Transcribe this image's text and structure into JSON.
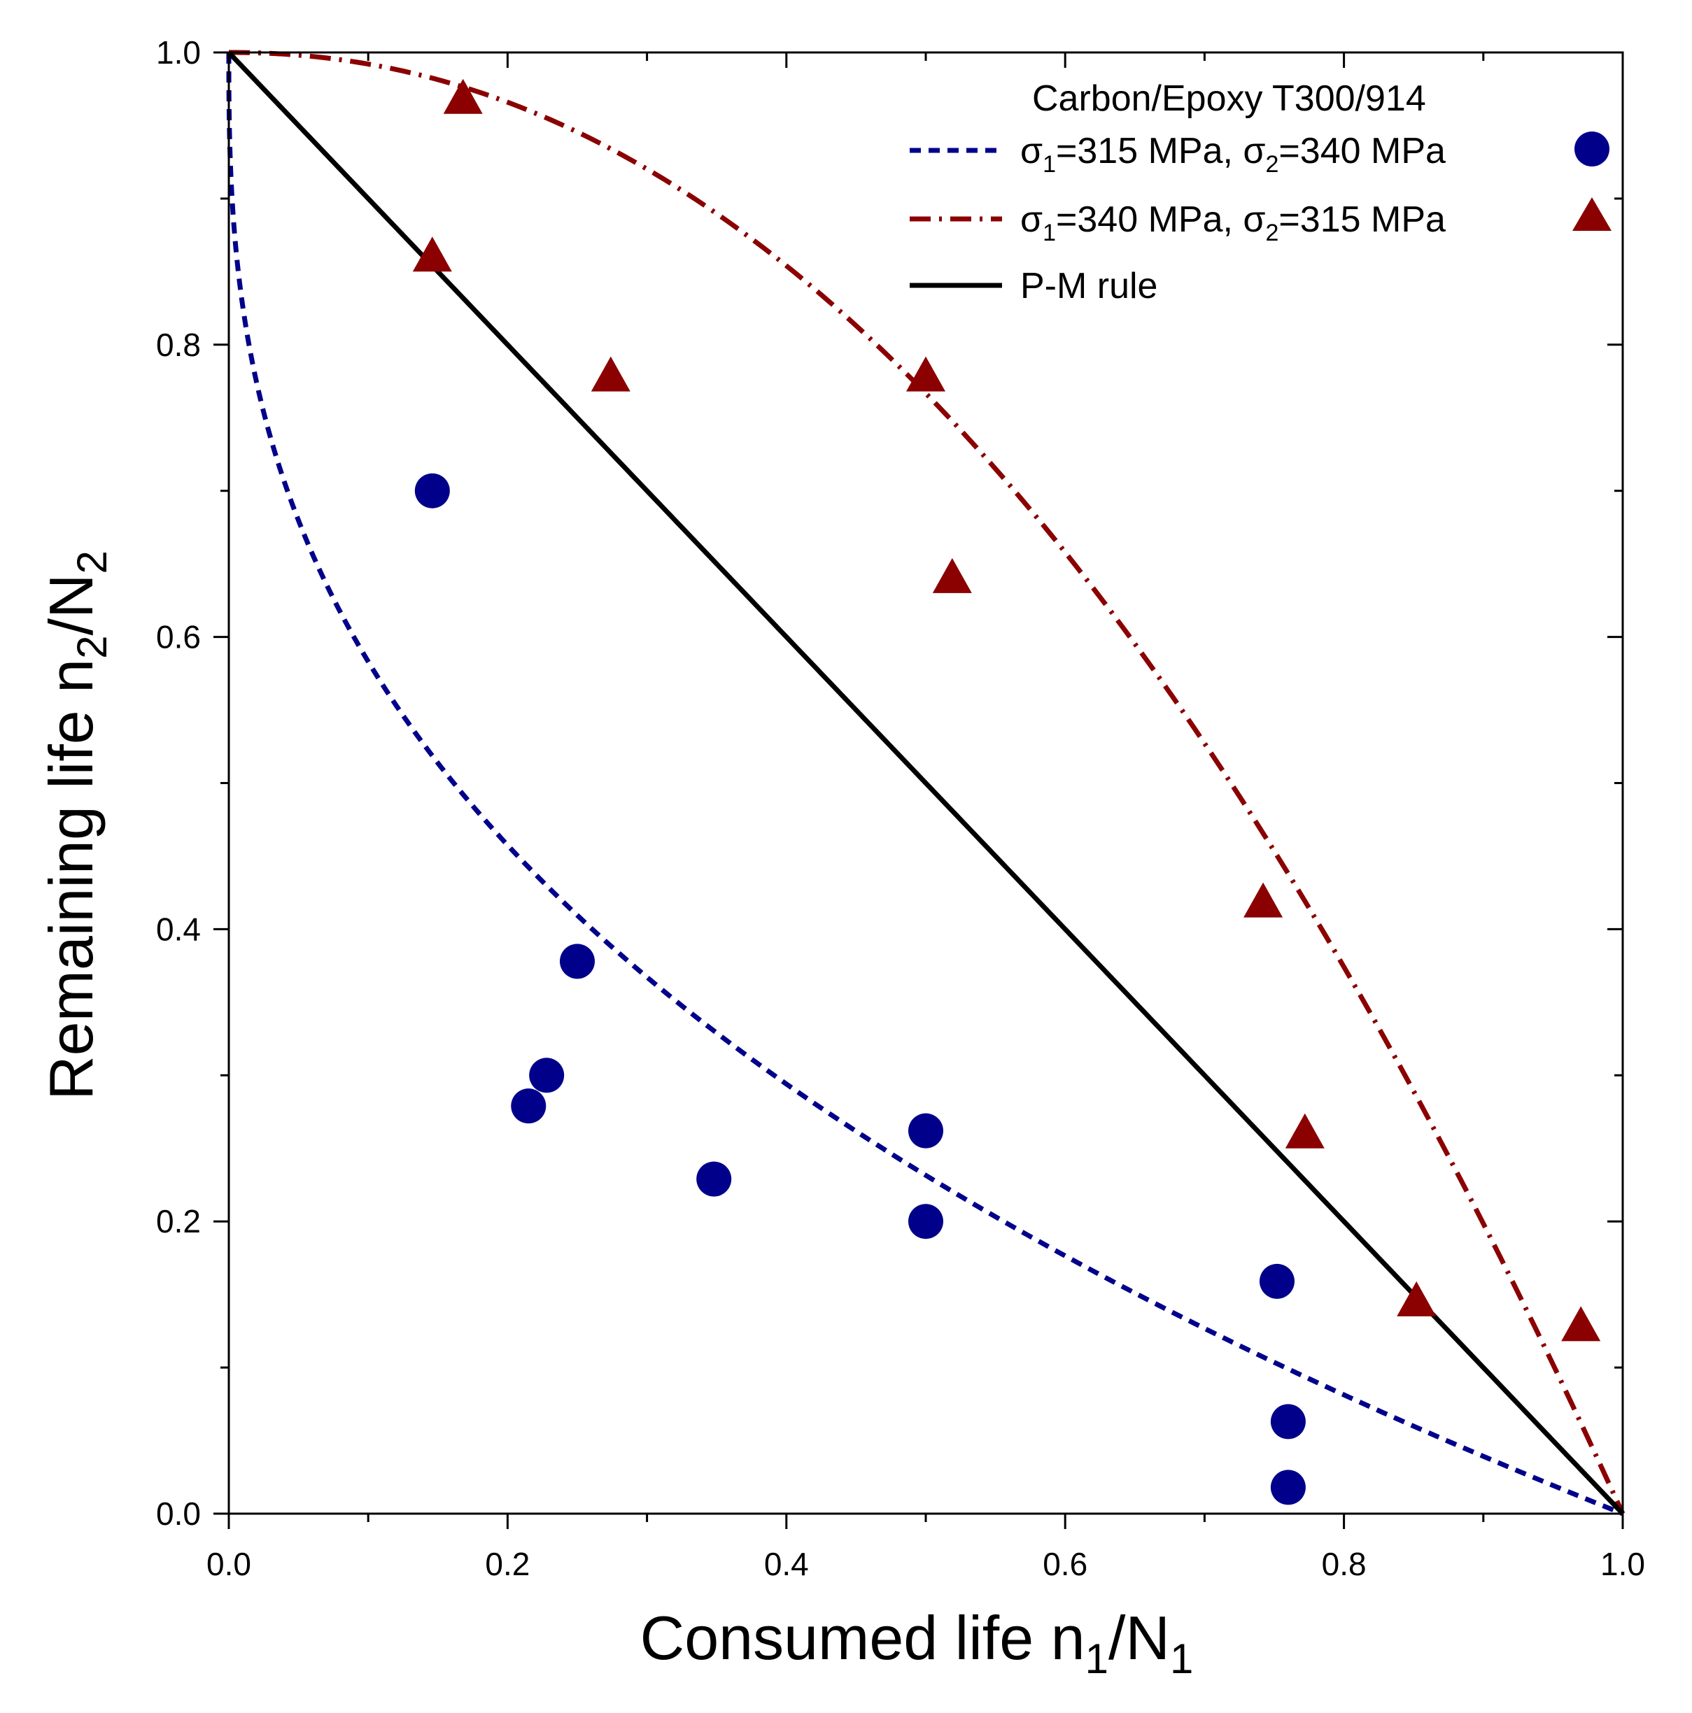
{
  "colors": {
    "blue": "#00008b",
    "red": "#8b0000",
    "black": "#000000"
  },
  "chart_data": {
    "type": "scatter",
    "title": "",
    "xlabel": {
      "base": "Consumed life n",
      "sub1": "1",
      "mid": "/N",
      "sub2": "1"
    },
    "ylabel": {
      "base": "Remaining life n",
      "sub1": "2",
      "mid": "/N",
      "sub2": "2"
    },
    "xlim": [
      0.0,
      1.0
    ],
    "ylim": [
      0.0,
      1.0
    ],
    "x_tick_labels": [
      "0.0",
      "0.2",
      "0.4",
      "0.6",
      "0.8",
      "1.0"
    ],
    "y_tick_labels": [
      "0.0",
      "0.2",
      "0.4",
      "0.6",
      "0.8",
      "1.0"
    ],
    "legend": {
      "position": "top-right",
      "title": "Carbon/Epoxy T300/914",
      "entries": [
        {
          "key": "blue",
          "s1": "σ",
          "s1sub": "1",
          "v1": "=315 MPa, ",
          "s2": "σ",
          "s2sub": "2",
          "v2": "=340 MPa",
          "line": "dashed",
          "marker": "circle"
        },
        {
          "key": "red",
          "s1": "σ",
          "s1sub": "1",
          "v1": "=340 MPa, ",
          "s2": "σ",
          "s2sub": "2",
          "v2": "=315 MPa",
          "line": "dash-dot",
          "marker": "triangle"
        },
        {
          "key": "black",
          "text": "P-M rule",
          "line": "solid"
        }
      ]
    },
    "series": [
      {
        "name": "σ1=315 MPa, σ2=340 MPa",
        "color_key": "blue",
        "marker": "circle",
        "points": [
          [
            0.146,
            0.7
          ],
          [
            0.25,
            0.378
          ],
          [
            0.228,
            0.3
          ],
          [
            0.215,
            0.279
          ],
          [
            0.348,
            0.229
          ],
          [
            0.5,
            0.262
          ],
          [
            0.5,
            0.2
          ],
          [
            0.752,
            0.159
          ],
          [
            0.76,
            0.063
          ],
          [
            0.76,
            0.018
          ]
        ],
        "curve": {
          "style": "dashed",
          "model": "1 - x^0.38"
        }
      },
      {
        "name": "σ1=340 MPa, σ2=315 MPa",
        "color_key": "red",
        "marker": "triangle",
        "points": [
          [
            0.168,
            0.97
          ],
          [
            0.146,
            0.862
          ],
          [
            0.274,
            0.78
          ],
          [
            0.5,
            0.78
          ],
          [
            0.519,
            0.642
          ],
          [
            0.742,
            0.42
          ],
          [
            0.772,
            0.262
          ],
          [
            0.852,
            0.147
          ],
          [
            0.97,
            0.13
          ]
        ],
        "curve": {
          "style": "dash-dot",
          "model": "1 - x^2.1"
        }
      },
      {
        "name": "P-M rule",
        "color_key": "black",
        "curve": {
          "style": "solid",
          "model": "1 - x"
        }
      }
    ]
  }
}
